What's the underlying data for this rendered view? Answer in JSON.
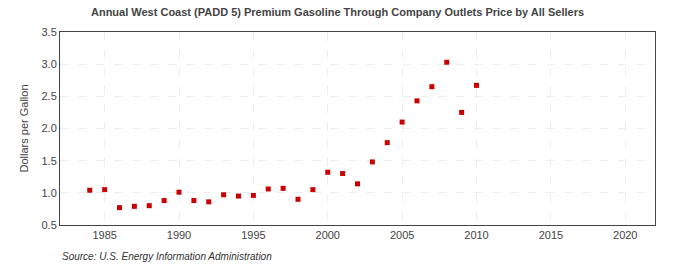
{
  "chart_data": {
    "type": "scatter",
    "title": "Annual West Coast (PADD 5) Premium Gasoline Through Company Outlets Price by All Sellers",
    "ylabel": "Dollars per Gallon",
    "source": "Source: U.S. Energy Information Administration",
    "x": [
      1984,
      1985,
      1986,
      1987,
      1988,
      1989,
      1990,
      1991,
      1992,
      1993,
      1994,
      1995,
      1996,
      1997,
      1998,
      1999,
      2000,
      2001,
      2002,
      2003,
      2004,
      2005,
      2006,
      2007,
      2008,
      2009,
      2010
    ],
    "values": [
      1.04,
      1.05,
      0.77,
      0.79,
      0.8,
      0.88,
      1.01,
      0.88,
      0.86,
      0.97,
      0.95,
      0.96,
      1.06,
      1.07,
      0.9,
      1.05,
      1.32,
      1.3,
      1.14,
      1.48,
      1.78,
      2.1,
      2.43,
      2.65,
      3.03,
      2.25,
      2.67
    ],
    "color": "#cc0000",
    "marker": "square",
    "xlim": [
      1982,
      2022
    ],
    "ylim": [
      0.5,
      3.5
    ],
    "xticks": [
      1985,
      1990,
      1995,
      2000,
      2005,
      2010,
      2015,
      2020
    ],
    "yticks": [
      0.5,
      {
        "value": 1,
        "label": "1.0"
      },
      1.5,
      {
        "value": 2,
        "label": "2.0"
      },
      2.5,
      {
        "value": 3,
        "label": "3.0"
      },
      3.5
    ],
    "grid": true
  }
}
